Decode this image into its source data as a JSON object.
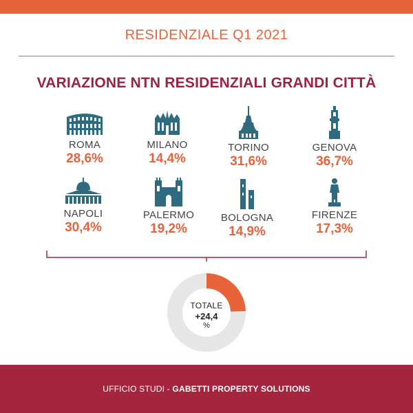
{
  "header": {
    "title": "RESIDENZIALE Q1 2021"
  },
  "main_title": "VARIAZIONE NTN RESIDENZIALI GRANDI CITTÀ",
  "cities": [
    {
      "name": "ROMA",
      "value": "28,6%",
      "icon": "colosseum-icon"
    },
    {
      "name": "MILANO",
      "value": "14,4%",
      "icon": "duomo-icon"
    },
    {
      "name": "TORINO",
      "value": "31,6%",
      "icon": "mole-antonelliana-icon"
    },
    {
      "name": "GENOVA",
      "value": "36,7%",
      "icon": "lanterna-icon"
    },
    {
      "name": "NAPOLI",
      "value": "30,4%",
      "icon": "basilica-dome-icon"
    },
    {
      "name": "PALERMO",
      "value": "19,2%",
      "icon": "cathedral-icon"
    },
    {
      "name": "BOLOGNA",
      "value": "14,9%",
      "icon": "two-towers-icon"
    },
    {
      "name": "FIRENZE",
      "value": "17,3%",
      "icon": "david-statue-icon"
    }
  ],
  "total": {
    "label": "TOTALE",
    "value": "+24,4",
    "unit": "%",
    "fraction": 0.244
  },
  "colors": {
    "accent": "#e8623a",
    "brand": "#a5253f",
    "title": "#9b2243",
    "icon": "#2f6b80",
    "ring": "#e6e6e6"
  },
  "footer": {
    "prefix": "UFFICIO STUDI - ",
    "brand": "GABETTI PROPERTY SOLUTIONS"
  }
}
